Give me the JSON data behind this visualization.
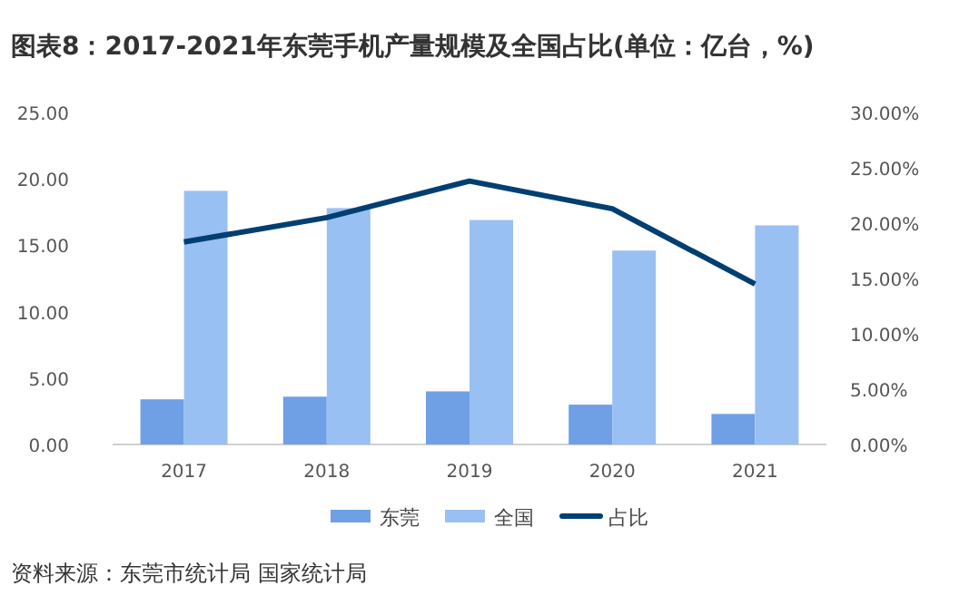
{
  "chart_data": {
    "type": "bar",
    "title": "图表8：2017-2021年东莞手机产量规模及全国占比(单位：亿台，%)",
    "categories": [
      "2017",
      "2018",
      "2019",
      "2020",
      "2021"
    ],
    "series": [
      {
        "name": "东莞",
        "color": "#6fa0e6",
        "values": [
          3.4,
          3.6,
          4.0,
          3.0,
          2.3
        ]
      },
      {
        "name": "全国",
        "color": "#99c0f2",
        "values": [
          19.1,
          17.8,
          16.9,
          14.6,
          16.5
        ]
      },
      {
        "name": "占比",
        "type": "line",
        "axis": "y2",
        "color": "#003f72",
        "values": [
          18.3,
          20.5,
          23.8,
          21.3,
          14.5
        ]
      }
    ],
    "ylim": [
      0,
      25
    ],
    "yticks": [
      {
        "value": 0,
        "label": "0.00"
      },
      {
        "value": 5,
        "label": "5.00"
      },
      {
        "value": 10,
        "label": "10.00"
      },
      {
        "value": 15,
        "label": "15.00"
      },
      {
        "value": 20,
        "label": "20.00"
      },
      {
        "value": 25,
        "label": "25.00"
      }
    ],
    "y2lim": [
      0,
      30
    ],
    "y2ticks": [
      {
        "value": 0,
        "label": "0.00%"
      },
      {
        "value": 5,
        "label": "5.00%"
      },
      {
        "value": 10,
        "label": "10.00%"
      },
      {
        "value": 15,
        "label": "15.00%"
      },
      {
        "value": 20,
        "label": "20.00%"
      },
      {
        "value": 25,
        "label": "25.00%"
      },
      {
        "value": 30,
        "label": "30.00%"
      }
    ],
    "legend": "bottom",
    "marker": "none",
    "annotations": [
      "资料来源：东莞市统计局 国家统计局"
    ]
  }
}
